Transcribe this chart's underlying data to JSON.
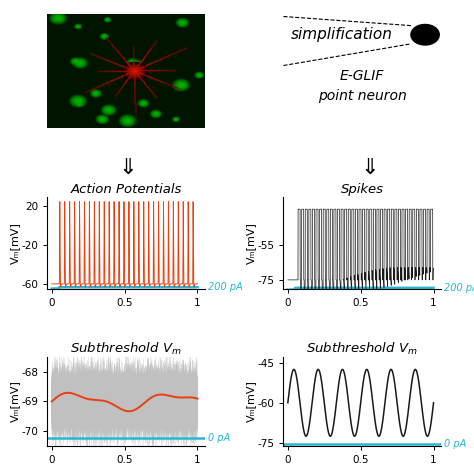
{
  "title_simplification": "simplification",
  "title_eglif_line1": "E-GLIF",
  "title_eglif_line2": "point neuron",
  "title_ap": "Action Potentials",
  "title_spikes": "Spikes",
  "title_sub": "Subthreshold V",
  "ylabel_vm": "Vₘ[mV]",
  "label_200pA": "200 pA",
  "label_0pA": "0 pA",
  "ap_color": "#E84010",
  "spike_color": "#1a1a1a",
  "sub1_color": "#E84010",
  "sub1_noise_color": "#c8c8c8",
  "sub2_color": "#1a1a1a",
  "current_color": "#29b6d4",
  "bg_color": "#ffffff",
  "ap_ylim": [
    -65,
    30
  ],
  "ap_yticks": [
    -60,
    -20,
    20
  ],
  "spike_ylim": [
    -80,
    -28
  ],
  "spike_yticks": [
    -75,
    -55
  ],
  "sub1_ylim": [
    -70.5,
    -67.5
  ],
  "sub1_yticks": [
    -70,
    -69,
    -68
  ],
  "sub2_ylim": [
    -76,
    -43
  ],
  "sub2_yticks": [
    -75,
    -60,
    -45
  ],
  "xlim": [
    -0.03,
    1.05
  ],
  "xticks": [
    0,
    0.5,
    1
  ]
}
